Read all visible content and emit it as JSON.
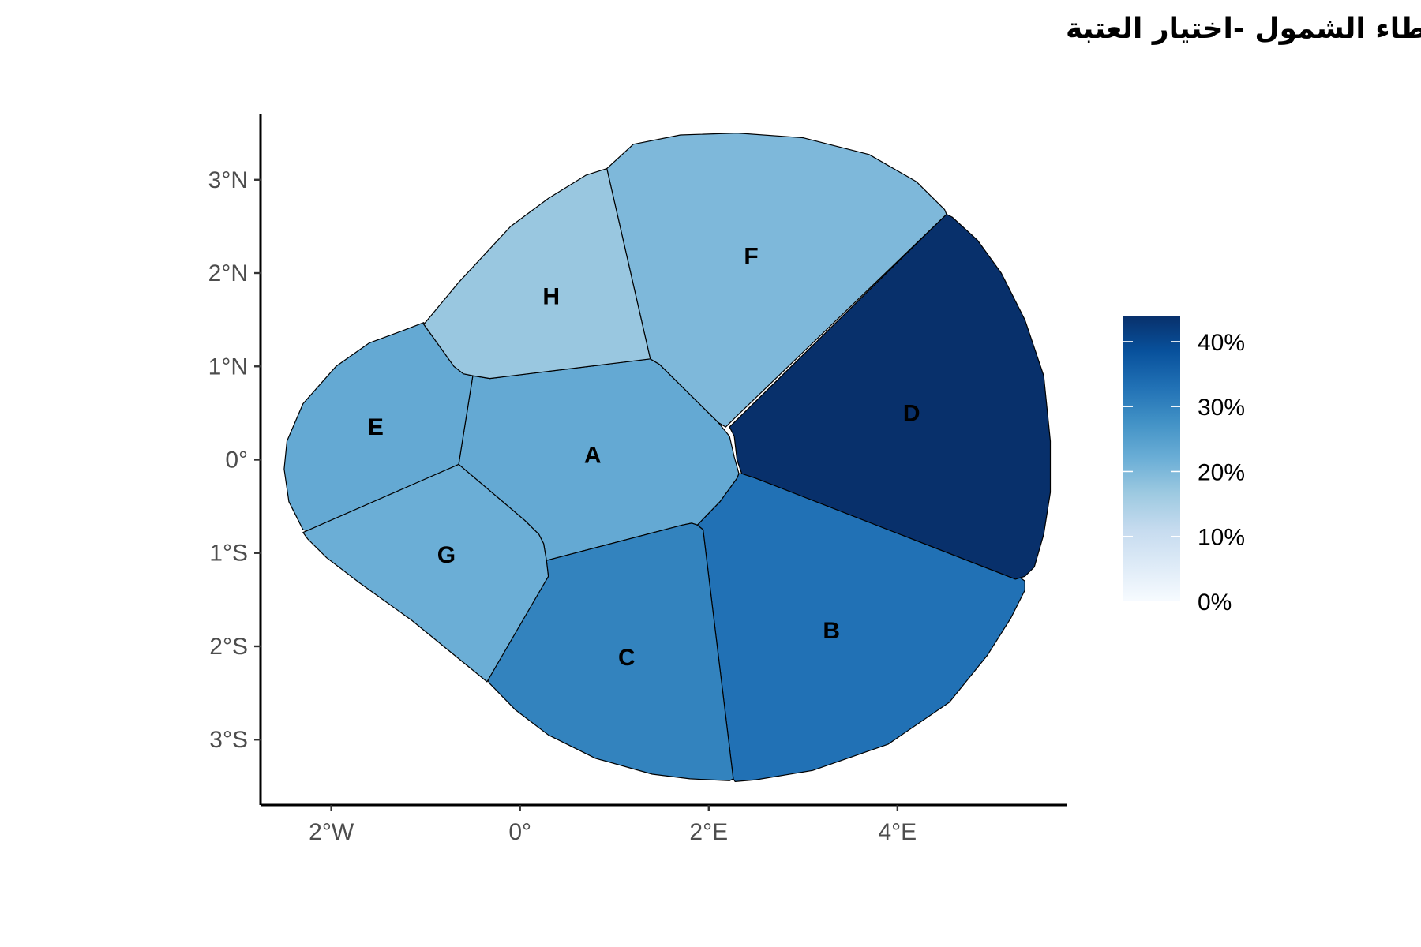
{
  "chart_data": {
    "type": "choropleth",
    "title": "أخطاء الشمول -اختيار العتبة",
    "x_ticks": [
      {
        "value": -2,
        "label": "2°W"
      },
      {
        "value": 0,
        "label": "0°"
      },
      {
        "value": 2,
        "label": "2°E"
      },
      {
        "value": 4,
        "label": "4°E"
      }
    ],
    "y_ticks": [
      {
        "value": 3,
        "label": "3°N"
      },
      {
        "value": 2,
        "label": "2°N"
      },
      {
        "value": 1,
        "label": "1°N"
      },
      {
        "value": 0,
        "label": "0°"
      },
      {
        "value": -1,
        "label": "1°S"
      },
      {
        "value": -2,
        "label": "2°S"
      },
      {
        "value": -3,
        "label": "3°S"
      }
    ],
    "xlim": [
      -2.75,
      5.8
    ],
    "ylim": [
      -3.7,
      3.7
    ],
    "legend": {
      "position": "right",
      "range": [
        0,
        44
      ],
      "ticks": [
        {
          "value": 0,
          "label": "0%"
        },
        {
          "value": 10,
          "label": "10%"
        },
        {
          "value": 20,
          "label": "20%"
        },
        {
          "value": 30,
          "label": "30%"
        },
        {
          "value": 40,
          "label": "40%"
        }
      ],
      "colors": [
        "#f7fbff",
        "#deebf7",
        "#c6dbef",
        "#9ecae1",
        "#6baed6",
        "#4292c6",
        "#2171b5",
        "#08519c",
        "#08306b"
      ]
    },
    "regions": [
      {
        "name": "A",
        "value": 23,
        "label_at": [
          0.77,
          0.05
        ],
        "boundary": [
          [
            -0.32,
            0.87
          ],
          [
            1.38,
            1.08
          ],
          [
            1.48,
            1.02
          ],
          [
            2.1,
            0.4
          ],
          [
            2.22,
            0.25
          ],
          [
            2.27,
            0.03
          ],
          [
            2.32,
            -0.15
          ],
          [
            2.3,
            -0.2
          ],
          [
            2.12,
            -0.45
          ],
          [
            1.88,
            -0.7
          ],
          [
            1.82,
            -0.68
          ],
          [
            1.72,
            -0.7
          ],
          [
            0.28,
            -1.08
          ],
          [
            0.25,
            -0.9
          ],
          [
            0.2,
            -0.8
          ],
          [
            0.05,
            -0.65
          ],
          [
            -0.3,
            -0.35
          ],
          [
            -0.65,
            -0.05
          ],
          [
            -0.5,
            0.9
          ]
        ]
      },
      {
        "name": "B",
        "value": 33,
        "label_at": [
          3.3,
          -1.83
        ],
        "boundary": [
          [
            2.32,
            -0.15
          ],
          [
            2.3,
            -0.2
          ],
          [
            2.12,
            -0.45
          ],
          [
            1.88,
            -0.7
          ],
          [
            1.94,
            -0.75
          ],
          [
            2.26,
            -3.42
          ],
          [
            2.28,
            -3.45
          ],
          [
            2.5,
            -3.43
          ],
          [
            3.1,
            -3.33
          ],
          [
            3.9,
            -3.05
          ],
          [
            4.55,
            -2.6
          ],
          [
            4.95,
            -2.1
          ],
          [
            5.2,
            -1.7
          ],
          [
            5.35,
            -1.4
          ],
          [
            5.35,
            -1.3
          ],
          [
            5.28,
            -1.25
          ],
          [
            2.5,
            -0.2
          ],
          [
            2.4,
            -0.15
          ]
        ]
      },
      {
        "name": "C",
        "value": 30,
        "label_at": [
          1.13,
          -2.12
        ],
        "boundary": [
          [
            0.28,
            -1.08
          ],
          [
            1.72,
            -0.7
          ],
          [
            1.82,
            -0.68
          ],
          [
            1.88,
            -0.7
          ],
          [
            1.94,
            -0.75
          ],
          [
            2.26,
            -3.42
          ],
          [
            2.22,
            -3.44
          ],
          [
            1.8,
            -3.42
          ],
          [
            1.4,
            -3.37
          ],
          [
            0.8,
            -3.2
          ],
          [
            0.3,
            -2.95
          ],
          [
            -0.05,
            -2.68
          ],
          [
            -0.32,
            -2.4
          ],
          [
            -0.35,
            -2.35
          ],
          [
            0.3,
            -1.25
          ]
        ]
      },
      {
        "name": "D",
        "value": 44,
        "label_at": [
          4.15,
          0.5
        ],
        "boundary": [
          [
            2.22,
            0.35
          ],
          [
            4.52,
            2.63
          ],
          [
            4.58,
            2.6
          ],
          [
            4.85,
            2.35
          ],
          [
            5.1,
            2.0
          ],
          [
            5.35,
            1.5
          ],
          [
            5.55,
            0.9
          ],
          [
            5.62,
            0.2
          ],
          [
            5.62,
            -0.35
          ],
          [
            5.55,
            -0.8
          ],
          [
            5.45,
            -1.15
          ],
          [
            5.35,
            -1.25
          ],
          [
            5.25,
            -1.28
          ],
          [
            2.5,
            -0.2
          ],
          [
            2.35,
            -0.15
          ],
          [
            2.3,
            0.0
          ],
          [
            2.27,
            0.25
          ],
          [
            2.22,
            0.35
          ]
        ]
      },
      {
        "name": "E",
        "value": 23,
        "label_at": [
          -1.53,
          0.35
        ],
        "boundary": [
          [
            -1.02,
            1.45
          ],
          [
            -1.02,
            1.47
          ],
          [
            -1.25,
            1.38
          ],
          [
            -1.6,
            1.25
          ],
          [
            -1.95,
            1.0
          ],
          [
            -2.3,
            0.6
          ],
          [
            -2.47,
            0.2
          ],
          [
            -2.5,
            -0.1
          ],
          [
            -2.45,
            -0.45
          ],
          [
            -2.3,
            -0.75
          ],
          [
            -2.17,
            -0.78
          ],
          [
            -0.65,
            -0.05
          ],
          [
            -0.5,
            0.9
          ],
          [
            -0.6,
            0.92
          ],
          [
            -0.7,
            1.0
          ]
        ]
      },
      {
        "name": "F",
        "value": 20,
        "label_at": [
          2.45,
          2.18
        ],
        "boundary": [
          [
            0.92,
            3.12
          ],
          [
            1.38,
            1.08
          ],
          [
            1.48,
            1.02
          ],
          [
            2.1,
            0.4
          ],
          [
            2.18,
            0.35
          ],
          [
            2.3,
            0.47
          ],
          [
            4.52,
            2.63
          ],
          [
            4.5,
            2.68
          ],
          [
            4.2,
            2.98
          ],
          [
            3.7,
            3.27
          ],
          [
            3.0,
            3.45
          ],
          [
            2.3,
            3.5
          ],
          [
            1.7,
            3.48
          ],
          [
            1.2,
            3.38
          ],
          [
            0.92,
            3.12
          ]
        ]
      },
      {
        "name": "H",
        "value": 17,
        "label_at": [
          0.33,
          1.75
        ],
        "boundary": [
          [
            0.92,
            3.12
          ],
          [
            1.38,
            1.08
          ],
          [
            -0.32,
            0.87
          ],
          [
            -0.5,
            0.9
          ],
          [
            -0.6,
            0.92
          ],
          [
            -0.7,
            1.0
          ],
          [
            -1.02,
            1.45
          ],
          [
            -0.65,
            1.9
          ],
          [
            -0.1,
            2.5
          ],
          [
            0.3,
            2.8
          ],
          [
            0.7,
            3.05
          ],
          [
            0.92,
            3.12
          ]
        ]
      },
      {
        "name": "G",
        "value": 22,
        "label_at": [
          -0.78,
          -1.02
        ],
        "boundary": [
          [
            -2.3,
            -0.78
          ],
          [
            -0.65,
            -0.05
          ],
          [
            -0.3,
            -0.35
          ],
          [
            0.05,
            -0.65
          ],
          [
            0.2,
            -0.8
          ],
          [
            0.25,
            -0.9
          ],
          [
            0.28,
            -1.08
          ],
          [
            0.3,
            -1.25
          ],
          [
            -0.35,
            -2.38
          ],
          [
            -1.15,
            -1.72
          ],
          [
            -1.7,
            -1.32
          ],
          [
            -2.05,
            -1.05
          ],
          [
            -2.25,
            -0.85
          ]
        ]
      }
    ]
  }
}
